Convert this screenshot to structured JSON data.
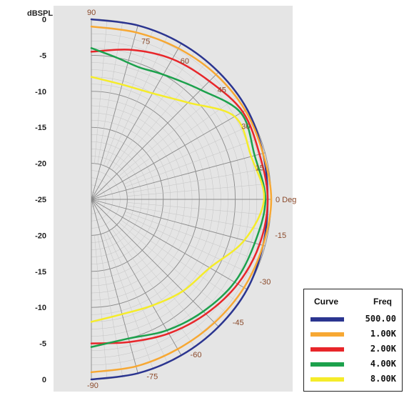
{
  "chart_data": {
    "type": "polar-line",
    "radial_unit_label": "dBSPL",
    "angle_unit_label": "Deg",
    "radial_range": [
      -25,
      0
    ],
    "angle_range": [
      -90,
      90
    ],
    "radial_ticks_left": [
      "0",
      "-5",
      "-10",
      "-15",
      "-20",
      "-25",
      "-20",
      "-15",
      "-10",
      "-5",
      "0"
    ],
    "angle_ticks": [
      {
        "deg": 90,
        "label": "90"
      },
      {
        "deg": 75,
        "label": "75"
      },
      {
        "deg": 60,
        "label": "60"
      },
      {
        "deg": 45,
        "label": "45"
      },
      {
        "deg": 30,
        "label": "30"
      },
      {
        "deg": 15,
        "label": "15"
      },
      {
        "deg": 0,
        "label": "0 Deg"
      },
      {
        "deg": -15,
        "label": "-15"
      },
      {
        "deg": -30,
        "label": "-30"
      },
      {
        "deg": -45,
        "label": "-45"
      },
      {
        "deg": -60,
        "label": "-60"
      },
      {
        "deg": -75,
        "label": "-75"
      },
      {
        "deg": -90,
        "label": "-90"
      }
    ],
    "grid": true,
    "legend": {
      "position": "bottom-right",
      "header_curve": "Curve",
      "header_freq": "Freq"
    },
    "series": [
      {
        "name": "500.00",
        "color": "#2b3590",
        "angles": [
          90,
          75,
          60,
          45,
          30,
          15,
          0,
          -15,
          -30,
          -45,
          -60,
          -75,
          -90
        ],
        "values": [
          0,
          0,
          0,
          0,
          0,
          -0.3,
          -0.5,
          -0.3,
          0,
          0,
          0,
          0,
          0
        ]
      },
      {
        "name": "1.00K",
        "color": "#f7a833",
        "angles": [
          90,
          75,
          60,
          45,
          30,
          15,
          0,
          -15,
          -30,
          -45,
          -60,
          -75,
          -90
        ],
        "values": [
          -1,
          -1,
          -0.8,
          -0.5,
          -0.3,
          -0.3,
          0,
          -0.3,
          -0.5,
          -0.8,
          -1,
          -1,
          -1
        ]
      },
      {
        "name": "2.00K",
        "color": "#e8262a",
        "angles": [
          90,
          75,
          60,
          45,
          30,
          15,
          0,
          -15,
          -30,
          -45,
          -60,
          -75,
          -90
        ],
        "values": [
          -4.5,
          -3.5,
          -2.5,
          -1.8,
          -0.7,
          -0.8,
          -0.5,
          -0.8,
          -1.5,
          -2.5,
          -3.5,
          -4.5,
          -5
        ]
      },
      {
        "name": "4.00K",
        "color": "#1ca14c",
        "angles": [
          90,
          80,
          70,
          60,
          45,
          30,
          15,
          0,
          -15,
          -30,
          -45,
          -60,
          -75,
          -90
        ],
        "values": [
          -4,
          -5,
          -5.5,
          -5,
          -3.5,
          -1,
          -1.5,
          -0.8,
          -1.5,
          -2,
          -3,
          -4,
          -5,
          -4.5
        ]
      },
      {
        "name": "8.00K",
        "color": "#f5ec2a",
        "angles": [
          90,
          75,
          60,
          45,
          30,
          15,
          0,
          -15,
          -30,
          -45,
          -60,
          -75,
          -90
        ],
        "values": [
          -8,
          -8.5,
          -8,
          -6,
          -2,
          -2,
          -1,
          -3,
          -6,
          -7,
          -8,
          -8.5,
          -8
        ]
      }
    ]
  }
}
